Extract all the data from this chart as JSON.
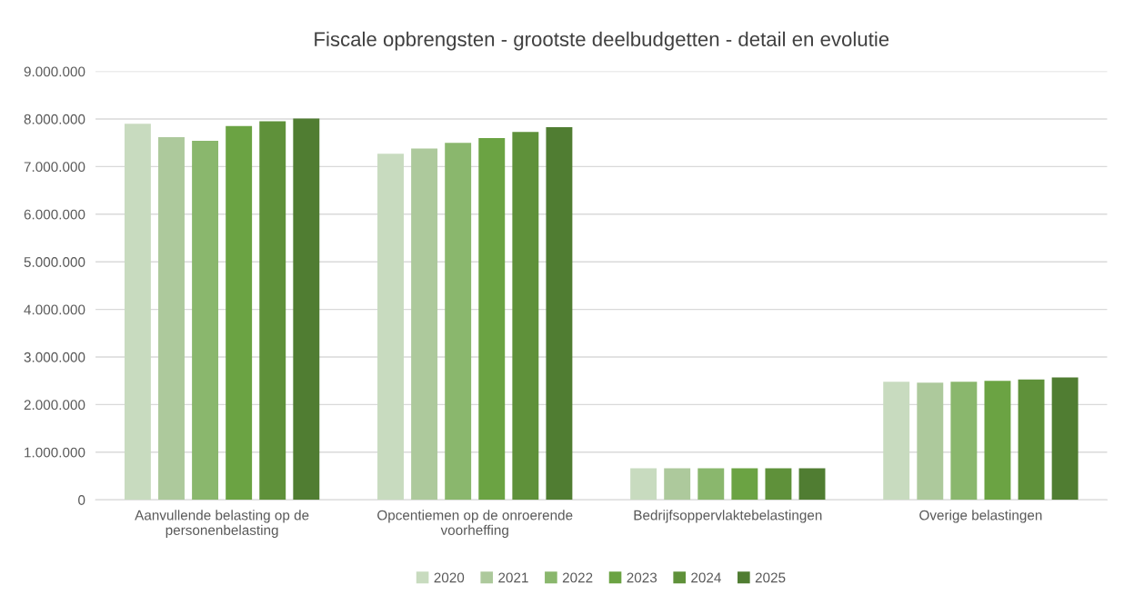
{
  "chart_data": {
    "type": "bar",
    "title": "Fiscale opbrengsten - grootste deelbudgetten - detail en evolutie",
    "categories": [
      "Aanvullende belasting op de\npersonenbelasting",
      "Opcentiemen op de onroerende\nvoorheffing",
      "Bedrijfsoppervlaktebelastingen",
      "Overige belastingen"
    ],
    "series": [
      {
        "name": "2020",
        "color": "#c8dbbf",
        "values": [
          7900000,
          7270000,
          660000,
          2480000
        ]
      },
      {
        "name": "2021",
        "color": "#adc99c",
        "values": [
          7620000,
          7380000,
          660000,
          2460000
        ]
      },
      {
        "name": "2022",
        "color": "#8ab76d",
        "values": [
          7540000,
          7500000,
          660000,
          2480000
        ]
      },
      {
        "name": "2023",
        "color": "#6ba343",
        "values": [
          7850000,
          7600000,
          660000,
          2500000
        ]
      },
      {
        "name": "2024",
        "color": "#5f913a",
        "values": [
          7950000,
          7730000,
          660000,
          2530000
        ]
      },
      {
        "name": "2025",
        "color": "#507d32",
        "values": [
          8010000,
          7830000,
          660000,
          2570000
        ]
      }
    ],
    "ylim": [
      0,
      9000000
    ],
    "yticks": [
      {
        "value": 0,
        "label": "0"
      },
      {
        "value": 1000000,
        "label": "1.000.000"
      },
      {
        "value": 2000000,
        "label": "2.000.000"
      },
      {
        "value": 3000000,
        "label": "3.000.000"
      },
      {
        "value": 4000000,
        "label": "4.000.000"
      },
      {
        "value": 5000000,
        "label": "5.000.000"
      },
      {
        "value": 6000000,
        "label": "6.000.000"
      },
      {
        "value": 7000000,
        "label": "7.000.000"
      },
      {
        "value": 8000000,
        "label": "8.000.000"
      },
      {
        "value": 9000000,
        "label": "9.000.000"
      }
    ],
    "grid": "y",
    "legend": "bottom"
  }
}
